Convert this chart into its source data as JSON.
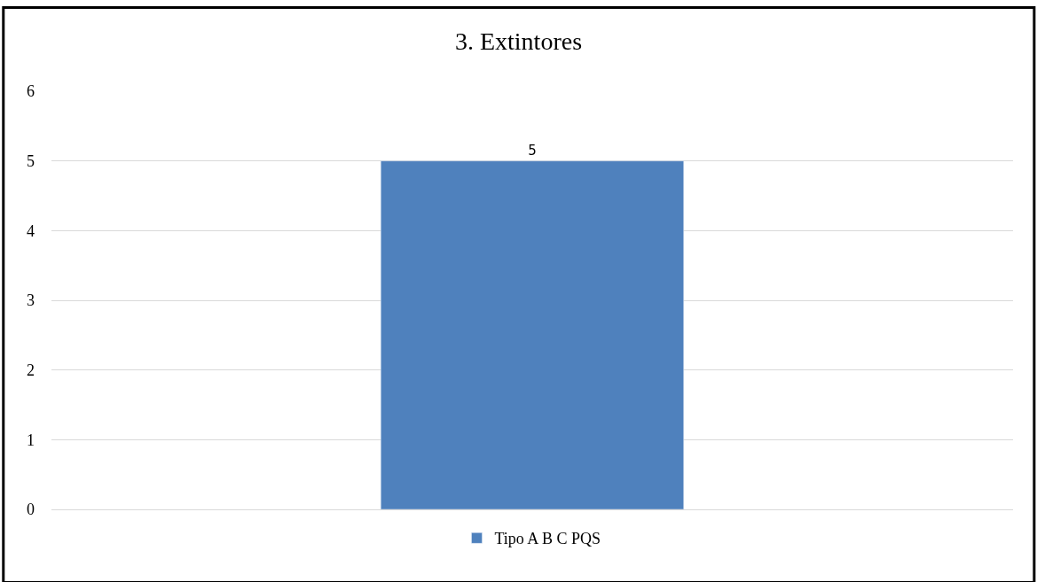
{
  "chart_data": {
    "type": "bar",
    "title": "3. Extintores",
    "categories": [
      null
    ],
    "series": [
      {
        "name": "Tipo A B C PQS",
        "color": "#4f81bd",
        "values": [
          5
        ]
      }
    ],
    "ylim": [
      0,
      6
    ],
    "yticks": [
      0,
      1,
      2,
      3,
      4,
      5,
      6
    ],
    "grid": "y",
    "legend": "bottom",
    "data_labels": true
  }
}
